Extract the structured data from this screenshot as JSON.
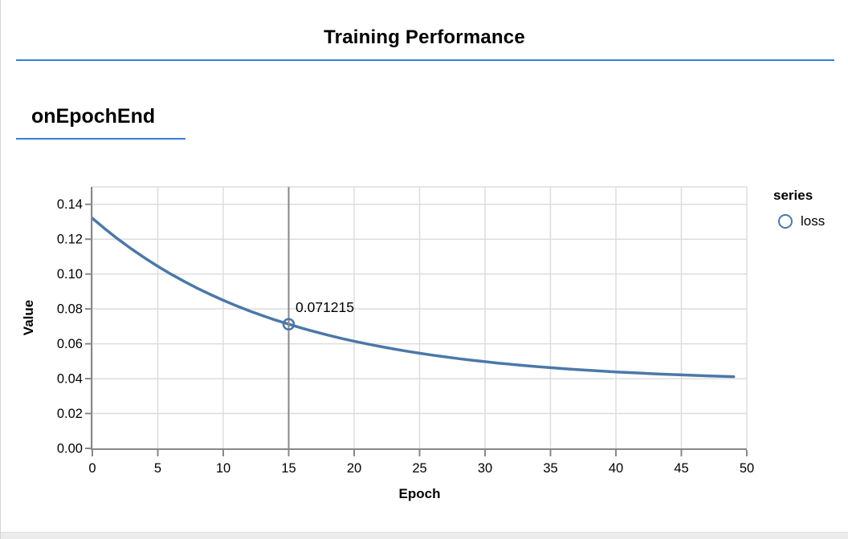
{
  "page": {
    "title": "Training Performance",
    "section_heading": "onEpochEnd"
  },
  "colors": {
    "accent_rule": "#357edd",
    "line": "#4c78a8",
    "axis": "#888888",
    "grid": "#dddddd",
    "crosshair": "#888888",
    "text": "#000000"
  },
  "chart_data": {
    "type": "line",
    "title": "Training Performance",
    "section": "onEpochEnd",
    "xlabel": "Epoch",
    "ylabel": "Value",
    "xlim": [
      0,
      50
    ],
    "ylim": [
      0,
      0.15
    ],
    "grid": true,
    "x_ticks": [
      0,
      5,
      10,
      15,
      20,
      25,
      30,
      35,
      40,
      45,
      50
    ],
    "x_tick_labels": [
      "0",
      "5",
      "10",
      "15",
      "20",
      "25",
      "30",
      "35",
      "40",
      "45",
      "50"
    ],
    "y_ticks": [
      0,
      0.02,
      0.04,
      0.06,
      0.08,
      0.1,
      0.12,
      0.14
    ],
    "y_tick_labels": [
      "0.00",
      "0.02",
      "0.04",
      "0.06",
      "0.08",
      "0.10",
      "0.12",
      "0.14"
    ],
    "legend": {
      "title": "series",
      "position": "right",
      "entries": [
        {
          "label": "loss",
          "color": "#4c78a8",
          "marker": "open-circle"
        }
      ]
    },
    "series": [
      {
        "name": "loss",
        "x": [
          0,
          1,
          2,
          3,
          4,
          5,
          6,
          7,
          8,
          9,
          10,
          11,
          12,
          13,
          14,
          15,
          16,
          17,
          18,
          19,
          20,
          21,
          22,
          23,
          24,
          25,
          26,
          27,
          28,
          29,
          30,
          31,
          32,
          33,
          34,
          35,
          36,
          37,
          38,
          39,
          40,
          41,
          42,
          43,
          44,
          45,
          46,
          47,
          48,
          49
        ],
        "values": [
          0.132,
          0.125698,
          0.119818,
          0.114332,
          0.109214,
          0.104439,
          0.099984,
          0.095828,
          0.091951,
          0.088334,
          0.084959,
          0.08181,
          0.078873,
          0.076132,
          0.073576,
          0.071215,
          0.068965,
          0.066889,
          0.064952,
          0.063145,
          0.061459,
          0.059886,
          0.058418,
          0.057049,
          0.055772,
          0.05458,
          0.053469,
          0.052432,
          0.051464,
          0.050561,
          0.049719,
          0.048933,
          0.0482,
          0.047516,
          0.046878,
          0.046283,
          0.045727,
          0.045209,
          0.044726,
          0.044275,
          0.043854,
          0.043462,
          0.043095,
          0.042754,
          0.042435,
          0.042138,
          0.04186,
          0.041601,
          0.04136,
          0.041135
        ]
      }
    ],
    "highlight": {
      "x": 15,
      "value": 0.071215,
      "label": "0.071215"
    }
  }
}
